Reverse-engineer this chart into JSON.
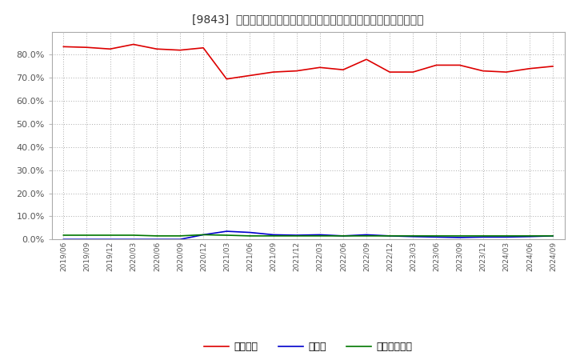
{
  "title": "[9843]  自己資本、のれん、繰延税金資産の総資産に対する比率の推移",
  "x_labels": [
    "2019/06",
    "2019/09",
    "2019/12",
    "2020/03",
    "2020/06",
    "2020/09",
    "2020/12",
    "2021/03",
    "2021/06",
    "2021/09",
    "2021/12",
    "2022/03",
    "2022/06",
    "2022/09",
    "2022/12",
    "2023/03",
    "2023/06",
    "2023/09",
    "2023/12",
    "2024/03",
    "2024/06",
    "2024/09"
  ],
  "equity": [
    83.5,
    83.2,
    82.5,
    84.5,
    82.5,
    82.0,
    83.0,
    69.5,
    71.0,
    72.5,
    73.0,
    74.5,
    73.5,
    78.0,
    72.5,
    72.5,
    75.5,
    75.5,
    73.0,
    72.5,
    74.0,
    75.0
  ],
  "noren": [
    0.0,
    0.0,
    0.0,
    0.0,
    0.0,
    0.0,
    2.0,
    3.5,
    3.0,
    2.0,
    1.8,
    2.0,
    1.5,
    2.0,
    1.5,
    1.2,
    1.0,
    0.8,
    1.0,
    1.0,
    1.2,
    1.5
  ],
  "deferred_tax": [
    1.8,
    1.8,
    1.8,
    1.8,
    1.5,
    1.5,
    2.0,
    1.8,
    1.5,
    1.5,
    1.5,
    1.5,
    1.5,
    1.5,
    1.5,
    1.5,
    1.5,
    1.5,
    1.5,
    1.5,
    1.5,
    1.5
  ],
  "equity_color": "#dd0000",
  "noren_color": "#0000cc",
  "deferred_tax_color": "#007700",
  "legend_equity": "自己資本",
  "legend_noren": "のれん",
  "legend_deferred": "繰延税金資産",
  "ylim_min": 0.0,
  "ylim_max": 90.0,
  "yticks": [
    0.0,
    10.0,
    20.0,
    30.0,
    40.0,
    50.0,
    60.0,
    70.0,
    80.0
  ],
  "background_color": "#ffffff",
  "plot_bg_color": "#ffffff",
  "grid_color": "#aaaaaa"
}
